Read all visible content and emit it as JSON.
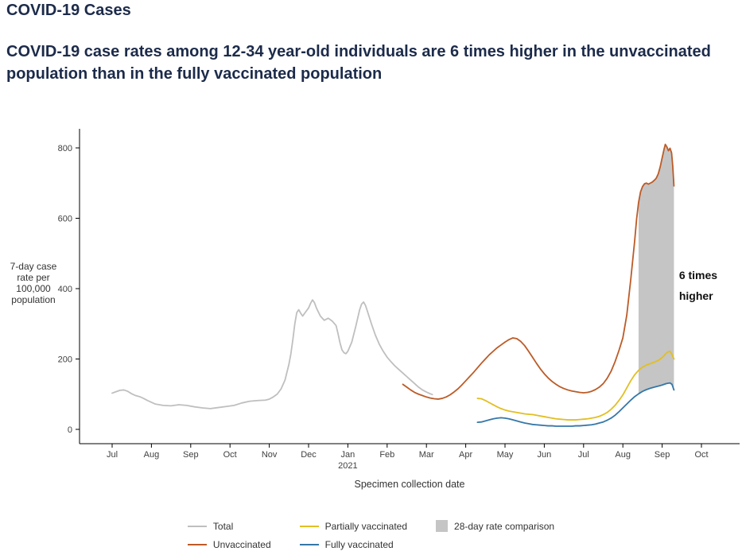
{
  "header": {
    "title": "COVID-19 Cases",
    "subtitle": "COVID-19 case rates among 12-34 year-old individuals are 6 times higher in the unvaccinated population than in the fully vaccinated population"
  },
  "colors": {
    "heading": "#1c2b4a",
    "axis_line": "#000000",
    "axis_text": "#404040"
  },
  "chart_data": {
    "type": "line",
    "title": "",
    "ylabel": "7-day case rate per 100,000 population",
    "xlabel": "Specimen collection date",
    "ylim": [
      0,
      800
    ],
    "y_ticks": [
      0,
      200,
      400,
      600,
      800
    ],
    "x_ticks": [
      "Jul",
      "Aug",
      "Sep",
      "Oct",
      "Nov",
      "Dec",
      "Jan",
      "Feb",
      "Mar",
      "Apr",
      "May",
      "Jun",
      "Jul",
      "Aug",
      "Sep",
      "Oct"
    ],
    "x_sublabel": {
      "index": 6,
      "text": "2021"
    },
    "grid": false,
    "legend_position": "bottom",
    "series": [
      {
        "name": "Total",
        "color": "#bfbfbf",
        "points": [
          [
            0,
            103
          ],
          [
            0.1,
            107
          ],
          [
            0.2,
            111
          ],
          [
            0.3,
            112
          ],
          [
            0.4,
            108
          ],
          [
            0.5,
            101
          ],
          [
            0.6,
            96
          ],
          [
            0.7,
            93
          ],
          [
            0.8,
            88
          ],
          [
            0.9,
            82
          ],
          [
            1,
            77
          ],
          [
            1.1,
            72
          ],
          [
            1.3,
            68
          ],
          [
            1.5,
            67
          ],
          [
            1.7,
            70
          ],
          [
            1.9,
            68
          ],
          [
            2.1,
            64
          ],
          [
            2.3,
            61
          ],
          [
            2.5,
            59
          ],
          [
            2.7,
            62
          ],
          [
            2.9,
            65
          ],
          [
            3.1,
            68
          ],
          [
            3.3,
            75
          ],
          [
            3.5,
            80
          ],
          [
            3.7,
            82
          ],
          [
            3.9,
            83
          ],
          [
            4,
            86
          ],
          [
            4.1,
            92
          ],
          [
            4.2,
            100
          ],
          [
            4.3,
            115
          ],
          [
            4.4,
            140
          ],
          [
            4.5,
            185
          ],
          [
            4.55,
            215
          ],
          [
            4.6,
            255
          ],
          [
            4.65,
            300
          ],
          [
            4.7,
            332
          ],
          [
            4.75,
            340
          ],
          [
            4.8,
            330
          ],
          [
            4.85,
            322
          ],
          [
            4.9,
            330
          ],
          [
            5,
            345
          ],
          [
            5.05,
            358
          ],
          [
            5.1,
            368
          ],
          [
            5.15,
            360
          ],
          [
            5.2,
            345
          ],
          [
            5.3,
            322
          ],
          [
            5.4,
            310
          ],
          [
            5.5,
            316
          ],
          [
            5.6,
            308
          ],
          [
            5.7,
            295
          ],
          [
            5.75,
            272
          ],
          [
            5.8,
            246
          ],
          [
            5.85,
            226
          ],
          [
            5.9,
            218
          ],
          [
            5.95,
            215
          ],
          [
            6,
            222
          ],
          [
            6.1,
            248
          ],
          [
            6.2,
            292
          ],
          [
            6.3,
            340
          ],
          [
            6.35,
            356
          ],
          [
            6.4,
            362
          ],
          [
            6.45,
            352
          ],
          [
            6.5,
            335
          ],
          [
            6.6,
            300
          ],
          [
            6.7,
            268
          ],
          [
            6.8,
            242
          ],
          [
            6.9,
            222
          ],
          [
            7,
            205
          ],
          [
            7.1,
            192
          ],
          [
            7.2,
            180
          ],
          [
            7.3,
            170
          ],
          [
            7.4,
            160
          ],
          [
            7.5,
            150
          ],
          [
            7.6,
            140
          ],
          [
            7.7,
            130
          ],
          [
            7.8,
            120
          ],
          [
            7.9,
            112
          ],
          [
            8,
            106
          ],
          [
            8.1,
            101
          ],
          [
            8.15,
            99
          ]
        ]
      },
      {
        "name": "Unvaccinated",
        "color": "#bc5b27",
        "points": [
          [
            7.4,
            128
          ],
          [
            7.5,
            120
          ],
          [
            7.6,
            112
          ],
          [
            7.7,
            105
          ],
          [
            7.8,
            100
          ],
          [
            7.9,
            96
          ],
          [
            8,
            92
          ],
          [
            8.1,
            89
          ],
          [
            8.2,
            87
          ],
          [
            8.3,
            86
          ],
          [
            8.4,
            88
          ],
          [
            8.5,
            92
          ],
          [
            8.6,
            98
          ],
          [
            8.7,
            106
          ],
          [
            8.8,
            115
          ],
          [
            8.9,
            126
          ],
          [
            9,
            138
          ],
          [
            9.1,
            150
          ],
          [
            9.2,
            162
          ],
          [
            9.3,
            175
          ],
          [
            9.4,
            188
          ],
          [
            9.5,
            200
          ],
          [
            9.6,
            212
          ],
          [
            9.7,
            222
          ],
          [
            9.8,
            232
          ],
          [
            9.9,
            240
          ],
          [
            10,
            248
          ],
          [
            10.1,
            255
          ],
          [
            10.2,
            260
          ],
          [
            10.3,
            258
          ],
          [
            10.4,
            250
          ],
          [
            10.5,
            238
          ],
          [
            10.6,
            222
          ],
          [
            10.7,
            205
          ],
          [
            10.8,
            188
          ],
          [
            10.9,
            172
          ],
          [
            11,
            158
          ],
          [
            11.1,
            146
          ],
          [
            11.2,
            136
          ],
          [
            11.3,
            128
          ],
          [
            11.4,
            121
          ],
          [
            11.5,
            116
          ],
          [
            11.6,
            112
          ],
          [
            11.7,
            109
          ],
          [
            11.8,
            107
          ],
          [
            11.9,
            105
          ],
          [
            12,
            104
          ],
          [
            12.1,
            105
          ],
          [
            12.2,
            108
          ],
          [
            12.3,
            113
          ],
          [
            12.4,
            120
          ],
          [
            12.5,
            130
          ],
          [
            12.6,
            145
          ],
          [
            12.7,
            165
          ],
          [
            12.8,
            192
          ],
          [
            12.9,
            224
          ],
          [
            13,
            260
          ],
          [
            13.1,
            325
          ],
          [
            13.2,
            425
          ],
          [
            13.3,
            535
          ],
          [
            13.35,
            598
          ],
          [
            13.4,
            645
          ],
          [
            13.45,
            675
          ],
          [
            13.5,
            690
          ],
          [
            13.55,
            698
          ],
          [
            13.6,
            700
          ],
          [
            13.65,
            697
          ],
          [
            13.7,
            700
          ],
          [
            13.75,
            703
          ],
          [
            13.8,
            708
          ],
          [
            13.85,
            714
          ],
          [
            13.9,
            726
          ],
          [
            13.95,
            746
          ],
          [
            14,
            772
          ],
          [
            14.05,
            797
          ],
          [
            14.08,
            810
          ],
          [
            14.12,
            803
          ],
          [
            14.16,
            792
          ],
          [
            14.2,
            799
          ],
          [
            14.24,
            786
          ],
          [
            14.27,
            748
          ],
          [
            14.3,
            692
          ]
        ]
      },
      {
        "name": "Partially vaccinated",
        "color": "#e2bf23",
        "points": [
          [
            9.3,
            88
          ],
          [
            9.4,
            87
          ],
          [
            9.5,
            82
          ],
          [
            9.6,
            76
          ],
          [
            9.7,
            70
          ],
          [
            9.8,
            64
          ],
          [
            9.9,
            59
          ],
          [
            10,
            55
          ],
          [
            10.1,
            52
          ],
          [
            10.2,
            50
          ],
          [
            10.3,
            48
          ],
          [
            10.4,
            46
          ],
          [
            10.5,
            44
          ],
          [
            10.6,
            43
          ],
          [
            10.7,
            42
          ],
          [
            10.8,
            40
          ],
          [
            10.9,
            38
          ],
          [
            11,
            36
          ],
          [
            11.1,
            34
          ],
          [
            11.2,
            32
          ],
          [
            11.3,
            30
          ],
          [
            11.4,
            29
          ],
          [
            11.5,
            28
          ],
          [
            11.6,
            27
          ],
          [
            11.7,
            27
          ],
          [
            11.8,
            27
          ],
          [
            11.9,
            28
          ],
          [
            12,
            29
          ],
          [
            12.1,
            30
          ],
          [
            12.2,
            32
          ],
          [
            12.3,
            34
          ],
          [
            12.4,
            37
          ],
          [
            12.5,
            42
          ],
          [
            12.6,
            48
          ],
          [
            12.7,
            57
          ],
          [
            12.8,
            68
          ],
          [
            12.9,
            82
          ],
          [
            13,
            98
          ],
          [
            13.1,
            118
          ],
          [
            13.2,
            138
          ],
          [
            13.3,
            155
          ],
          [
            13.4,
            168
          ],
          [
            13.5,
            177
          ],
          [
            13.6,
            183
          ],
          [
            13.7,
            187
          ],
          [
            13.8,
            191
          ],
          [
            13.9,
            196
          ],
          [
            14,
            204
          ],
          [
            14.05,
            210
          ],
          [
            14.1,
            216
          ],
          [
            14.15,
            220
          ],
          [
            14.2,
            222
          ],
          [
            14.25,
            213
          ],
          [
            14.3,
            200
          ]
        ]
      },
      {
        "name": "Fully vaccinated",
        "color": "#3577a8",
        "points": [
          [
            9.3,
            20
          ],
          [
            9.4,
            21
          ],
          [
            9.5,
            24
          ],
          [
            9.6,
            27
          ],
          [
            9.7,
            30
          ],
          [
            9.8,
            32
          ],
          [
            9.9,
            33
          ],
          [
            10,
            32
          ],
          [
            10.1,
            30
          ],
          [
            10.2,
            27
          ],
          [
            10.3,
            24
          ],
          [
            10.4,
            21
          ],
          [
            10.5,
            18
          ],
          [
            10.6,
            16
          ],
          [
            10.7,
            14
          ],
          [
            10.8,
            13
          ],
          [
            10.9,
            12
          ],
          [
            11,
            11
          ],
          [
            11.1,
            10
          ],
          [
            11.2,
            10
          ],
          [
            11.3,
            9
          ],
          [
            11.4,
            9
          ],
          [
            11.5,
            9
          ],
          [
            11.6,
            9
          ],
          [
            11.7,
            9
          ],
          [
            11.8,
            10
          ],
          [
            11.9,
            10
          ],
          [
            12,
            11
          ],
          [
            12.1,
            12
          ],
          [
            12.2,
            13
          ],
          [
            12.3,
            15
          ],
          [
            12.4,
            18
          ],
          [
            12.5,
            21
          ],
          [
            12.6,
            26
          ],
          [
            12.7,
            32
          ],
          [
            12.8,
            40
          ],
          [
            12.9,
            50
          ],
          [
            13,
            61
          ],
          [
            13.1,
            72
          ],
          [
            13.2,
            83
          ],
          [
            13.3,
            93
          ],
          [
            13.4,
            101
          ],
          [
            13.5,
            108
          ],
          [
            13.6,
            113
          ],
          [
            13.7,
            117
          ],
          [
            13.8,
            120
          ],
          [
            13.9,
            123
          ],
          [
            14,
            126
          ],
          [
            14.05,
            128
          ],
          [
            14.1,
            130
          ],
          [
            14.15,
            131
          ],
          [
            14.2,
            132
          ],
          [
            14.25,
            128
          ],
          [
            14.3,
            112
          ]
        ]
      }
    ],
    "band": {
      "label": "28-day rate comparison",
      "color": "#c5c5c5",
      "x_start": 13.4,
      "x_end": 14.3,
      "upper_series": "Unvaccinated",
      "lower_series": "Fully vaccinated"
    },
    "annotation": {
      "lines": [
        "6 times",
        "higher"
      ],
      "x": 14.43,
      "y_values": [
        427,
        368
      ]
    },
    "legend": [
      {
        "label": "Total",
        "swatch": "line",
        "color": "#bfbfbf"
      },
      {
        "label": "Unvaccinated",
        "swatch": "line",
        "color": "#bc5b27"
      },
      {
        "label": "Partially vaccinated",
        "swatch": "line",
        "color": "#e2bf23"
      },
      {
        "label": "Fully vaccinated",
        "swatch": "line",
        "color": "#3577a8"
      },
      {
        "label": "28-day rate comparison",
        "swatch": "box",
        "color": "#c5c5c5"
      }
    ]
  }
}
